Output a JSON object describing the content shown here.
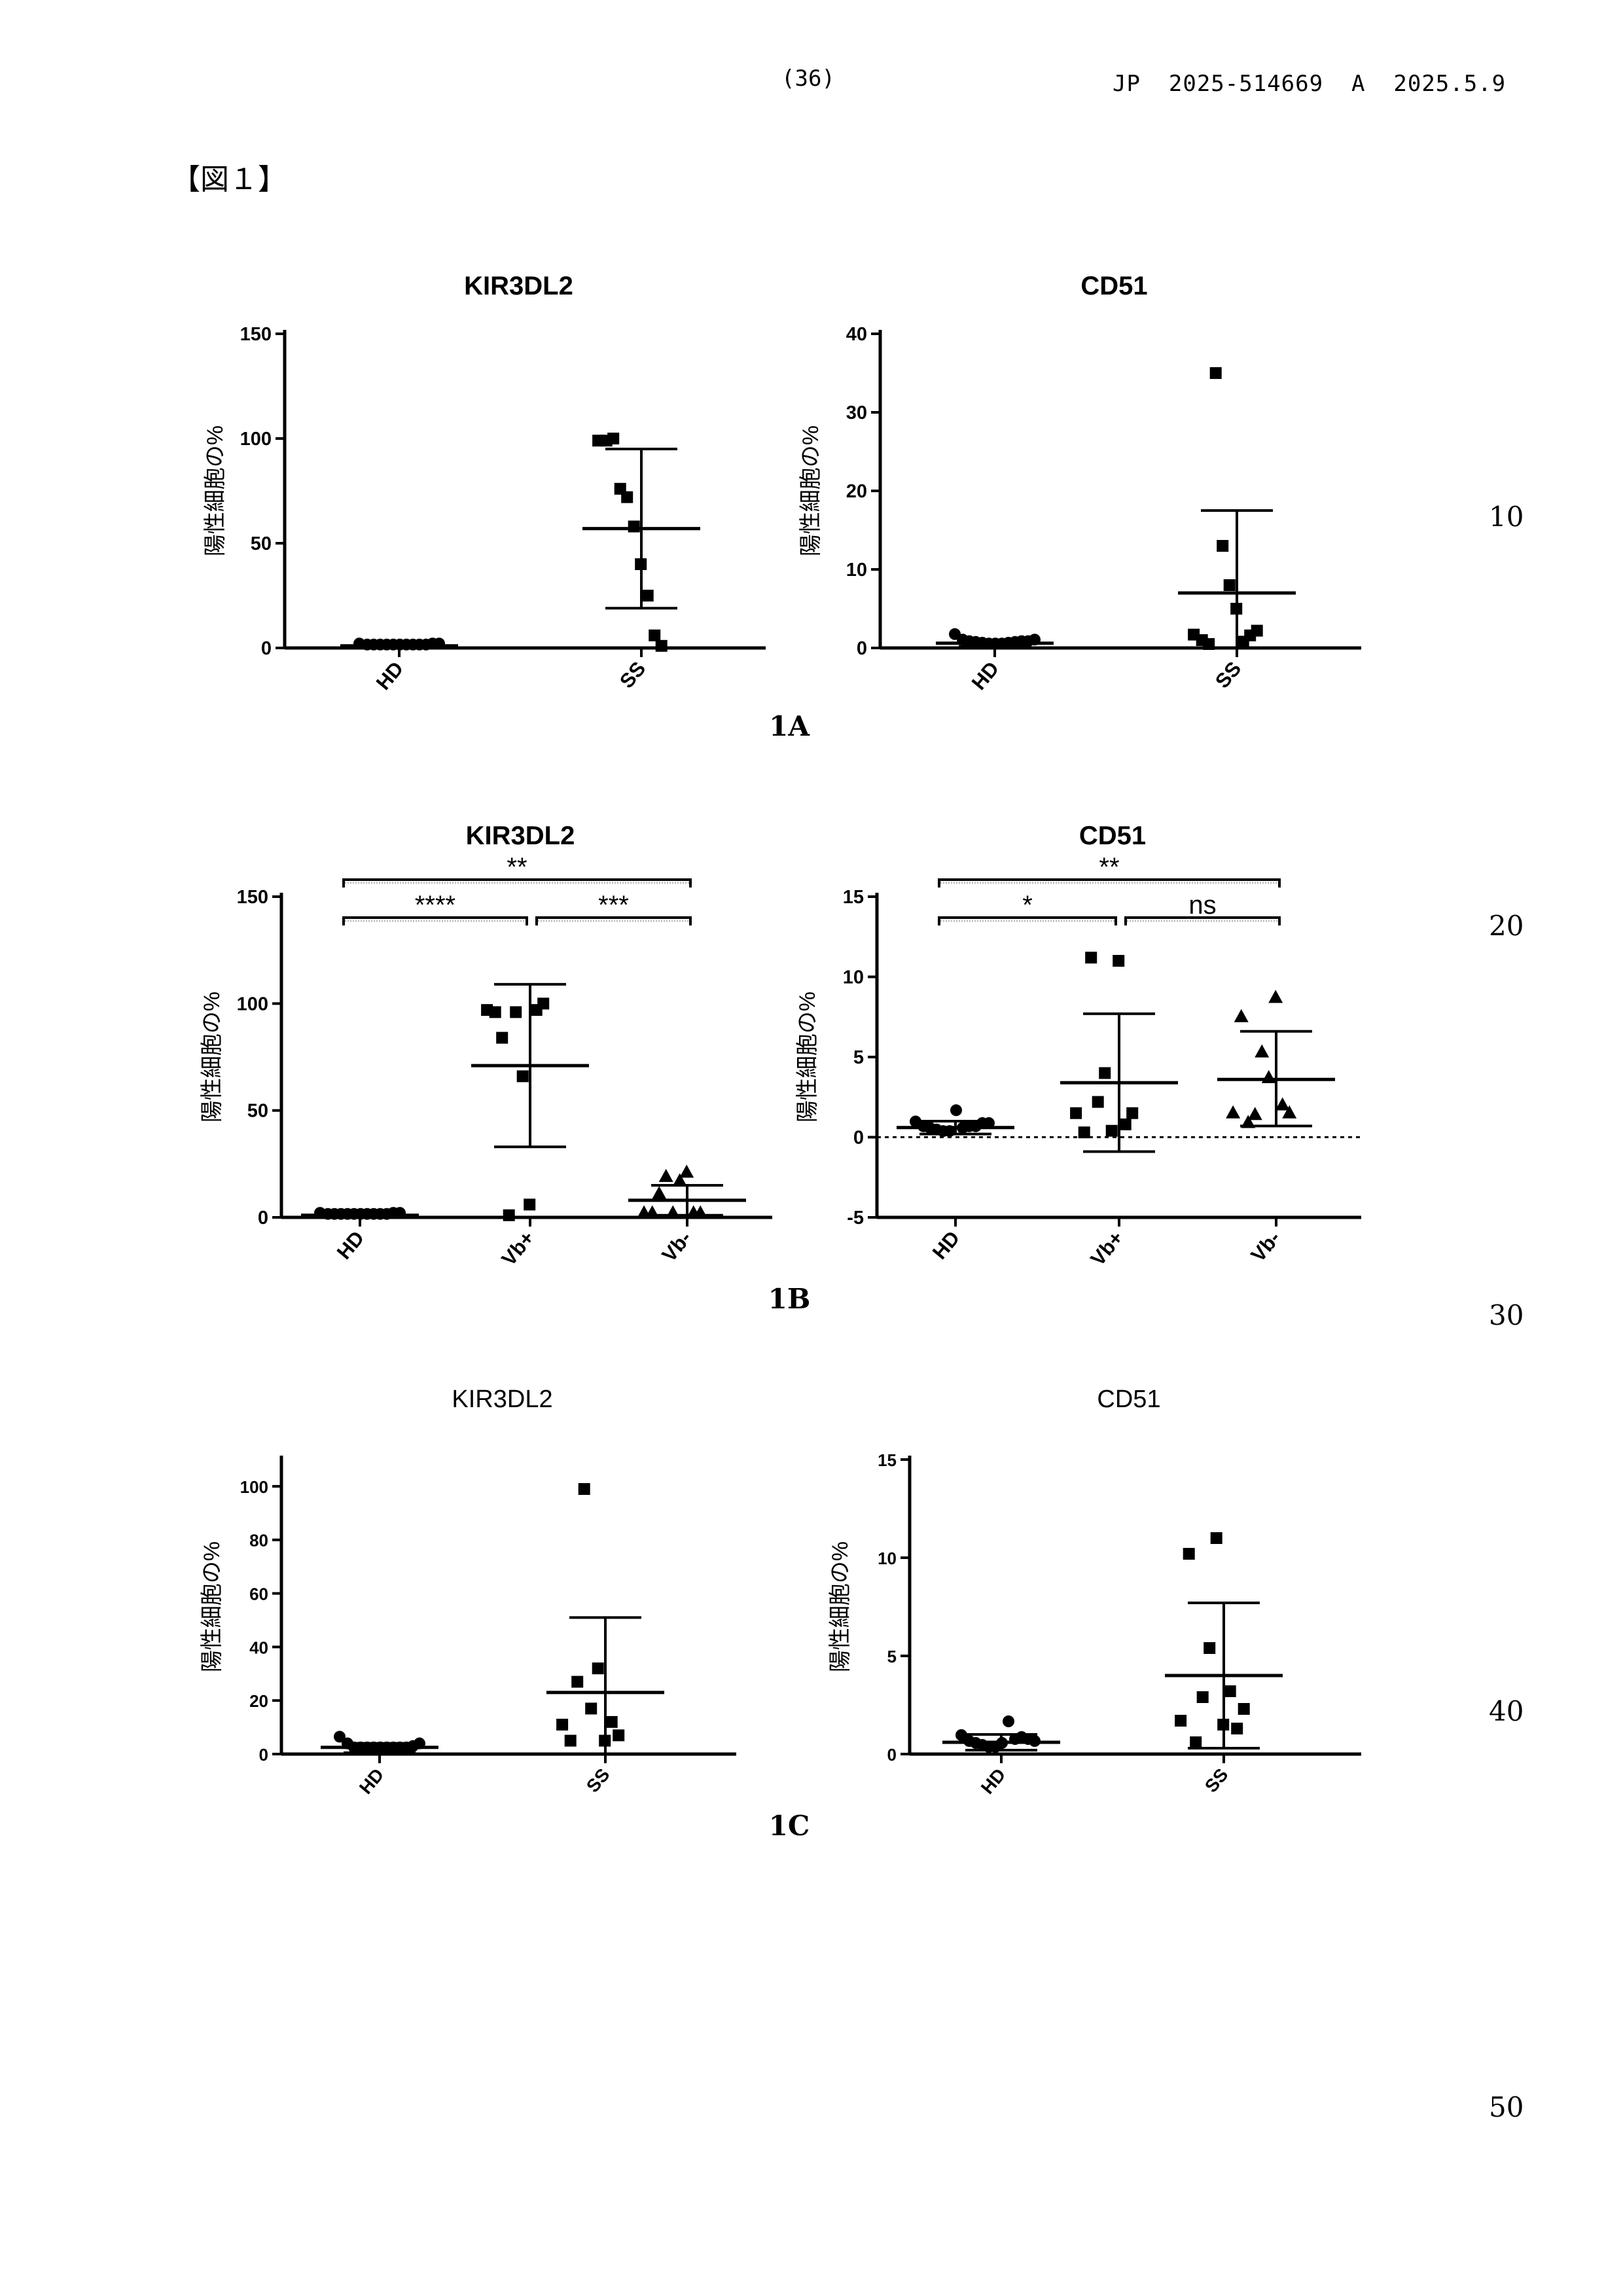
{
  "header": {
    "page_number": "(36)",
    "publication": "JP  2025-514669  A  2025.5.9",
    "figure_label": "【図１】"
  },
  "line_numbers": [
    "10",
    "20",
    "30",
    "40",
    "50"
  ],
  "panel_labels": [
    "1A",
    "1B",
    "1C"
  ],
  "chart_data": [
    {
      "type": "scatter",
      "panel": "1A",
      "title": "KIR3DL2",
      "ylabel": "陽性細胞の%",
      "categories": [
        "HD",
        "SS"
      ],
      "ylim": [
        0,
        150
      ],
      "yticks": [
        0,
        50,
        100,
        150
      ],
      "groups": [
        {
          "name": "HD",
          "marker": "circle",
          "mean": 1,
          "sd_low": 0,
          "sd_high": 2,
          "values": [
            1.5,
            1,
            1,
            1,
            1,
            1,
            1,
            1,
            1,
            1,
            1,
            1.5,
            1.5
          ]
        },
        {
          "name": "SS",
          "marker": "square",
          "mean": 57,
          "sd_low": 19,
          "sd_high": 95,
          "values": [
            99,
            99,
            100,
            76,
            72,
            58,
            40,
            25,
            6,
            1
          ]
        }
      ]
    },
    {
      "type": "scatter",
      "panel": "1A",
      "title": "CD51",
      "ylabel": "陽性細胞の%",
      "categories": [
        "HD",
        "SS"
      ],
      "ylim": [
        0,
        40
      ],
      "yticks": [
        0,
        10,
        20,
        30,
        40
      ],
      "groups": [
        {
          "name": "HD",
          "marker": "circle",
          "mean": 0.6,
          "sd_low": 0.2,
          "sd_high": 1.0,
          "values": [
            1.6,
            0.9,
            0.7,
            0.6,
            0.5,
            0.4,
            0.4,
            0.4,
            0.5,
            0.6,
            0.7,
            0.7,
            0.9
          ]
        },
        {
          "name": "SS",
          "marker": "square",
          "mean": 7,
          "sd_low": 0,
          "sd_high": 17.5,
          "values": [
            1.7,
            1.0,
            0.5,
            35,
            13,
            8,
            5,
            0.8,
            1.6,
            2.2
          ]
        }
      ]
    },
    {
      "type": "scatter",
      "panel": "1B",
      "title": "KIR3DL2",
      "ylabel": "陽性細胞の%",
      "categories": [
        "HD",
        "Vb+",
        "Vb-"
      ],
      "ylim": [
        0,
        150
      ],
      "yticks": [
        0,
        50,
        100,
        150
      ],
      "groups": [
        {
          "name": "HD",
          "marker": "circle",
          "mean": 1,
          "sd_low": 0,
          "sd_high": 2,
          "values": [
            1.5,
            1,
            1,
            1,
            1,
            1,
            1,
            1,
            1,
            1,
            1,
            1.5,
            1.5
          ]
        },
        {
          "name": "Vb+",
          "marker": "square",
          "mean": 71,
          "sd_low": 33,
          "sd_high": 109,
          "values": [
            97,
            96,
            84,
            1,
            96,
            66,
            6,
            97,
            100
          ]
        },
        {
          "name": "Vb-",
          "marker": "triangle",
          "mean": 8,
          "sd_low": 1,
          "sd_high": 15,
          "values": [
            2,
            2,
            11,
            19,
            2,
            17,
            21,
            2,
            2
          ]
        }
      ],
      "significance": [
        {
          "pair": [
            "HD",
            "Vb+"
          ],
          "label": "****"
        },
        {
          "pair": [
            "Vb+",
            "Vb-"
          ],
          "label": "***"
        },
        {
          "pair": [
            "HD",
            "Vb-"
          ],
          "label": "**"
        }
      ]
    },
    {
      "type": "scatter",
      "panel": "1B",
      "title": "CD51",
      "ylabel": "陽性細胞の%",
      "categories": [
        "HD",
        "Vb+",
        "Vb-"
      ],
      "ylim": [
        -5,
        15
      ],
      "yticks": [
        -5,
        0,
        5,
        10,
        15
      ],
      "zero_line": "dashed",
      "groups": [
        {
          "name": "HD",
          "marker": "circle",
          "mean": 0.6,
          "sd_low": 0.2,
          "sd_high": 1.0,
          "values": [
            0.9,
            0.6,
            0.5,
            0.4,
            0.3,
            0.3,
            1.6,
            0.5,
            0.6,
            0.6,
            0.8,
            0.8
          ]
        },
        {
          "name": "Vb+",
          "marker": "square",
          "mean": 3.4,
          "sd_low": -0.9,
          "sd_high": 7.7,
          "values": [
            1.5,
            0.3,
            11.2,
            2.2,
            4,
            0.4,
            11,
            0.8,
            1.5
          ]
        },
        {
          "name": "Vb-",
          "marker": "triangle",
          "mean": 3.6,
          "sd_low": 0.7,
          "sd_high": 6.6,
          "values": [
            1.5,
            7.5,
            0.9,
            1.4,
            5.3,
            3.7,
            8.7,
            2,
            1.5
          ]
        }
      ],
      "significance": [
        {
          "pair": [
            "HD",
            "Vb+"
          ],
          "label": "*"
        },
        {
          "pair": [
            "Vb+",
            "Vb-"
          ],
          "label": "ns"
        },
        {
          "pair": [
            "HD",
            "Vb-"
          ],
          "label": "**"
        }
      ]
    },
    {
      "type": "scatter",
      "panel": "1C",
      "title": "KIR3DL2",
      "ylabel": "陽性細胞の%",
      "categories": [
        "HD",
        "SS"
      ],
      "ylim": [
        0,
        110
      ],
      "yticks": [
        0,
        20,
        40,
        60,
        80,
        100
      ],
      "groups": [
        {
          "name": "HD",
          "marker": "circle",
          "mean": 2.5,
          "sd_low": 0.5,
          "sd_high": 4,
          "values": [
            6,
            3.5,
            2,
            2,
            2,
            2,
            2,
            2,
            2,
            2,
            2,
            2.5,
            3.5
          ]
        },
        {
          "name": "SS",
          "marker": "square",
          "mean": 23,
          "sd_low": 0,
          "sd_high": 51,
          "values": [
            11,
            5,
            27,
            99,
            17,
            32,
            5,
            12,
            7
          ]
        }
      ]
    },
    {
      "type": "scatter",
      "panel": "1C",
      "title": "CD51",
      "ylabel": "陽性細胞の%",
      "categories": [
        "HD",
        "SS"
      ],
      "ylim": [
        0,
        15
      ],
      "yticks": [
        0,
        5,
        10,
        15
      ],
      "groups": [
        {
          "name": "HD",
          "marker": "circle",
          "mean": 0.6,
          "sd_low": 0.2,
          "sd_high": 1.0,
          "values": [
            0.9,
            0.6,
            0.5,
            0.4,
            0.3,
            0.3,
            0.5,
            1.6,
            0.7,
            0.8,
            0.7,
            0.6
          ]
        },
        {
          "name": "SS",
          "marker": "square",
          "mean": 4,
          "sd_low": 0.3,
          "sd_high": 7.7,
          "values": [
            1.7,
            10.2,
            0.6,
            2.9,
            5.4,
            11,
            1.5,
            3.2,
            1.3,
            2.3
          ]
        }
      ]
    }
  ]
}
